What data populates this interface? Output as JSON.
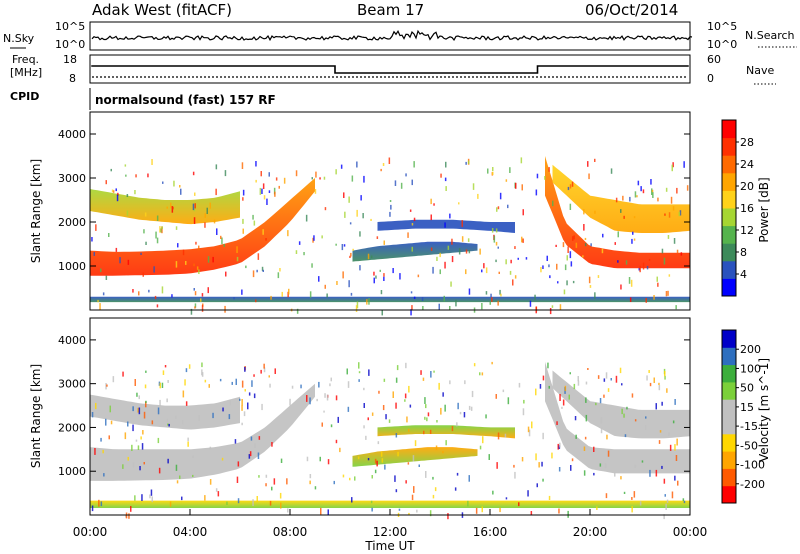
{
  "header": {
    "station": "Adak West (fitACF)",
    "beam": "Beam 17",
    "date": "06/Oct/2014"
  },
  "noise_panel": {
    "left_label": "N.Sky",
    "right_label": "N.Search",
    "ytick_top": "10^5",
    "ytick_bottom": "10^0",
    "rtick_top": "10^5",
    "rtick_bottom": "10^0"
  },
  "freq_panel": {
    "left_label_1": "Freq.",
    "left_label_2": "[MHz]",
    "right_label": "Nave",
    "ytick_top": "18",
    "ytick_bottom": "8",
    "rtick_top": "60",
    "rtick_bottom": "0"
  },
  "cpid_panel": {
    "label": "CPID",
    "text": "normalsound (fast) 157 RF"
  },
  "colors": {
    "power_scale": [
      "#0000ff",
      "#2a52be",
      "#3c8a5a",
      "#55b34d",
      "#a6d633",
      "#ffd21a",
      "#ffa500",
      "#ff6a00",
      "#ff3000",
      "#ff0000"
    ],
    "velocity_scale": [
      "#ff0000",
      "#ff5a00",
      "#ffa500",
      "#ffd700",
      "#c0c0c0",
      "#c0c0c0",
      "#7bd03a",
      "#3cae3c",
      "#2e6fbf",
      "#0000c8"
    ],
    "ground_scatter": "#c0c0c0"
  },
  "chart_data": [
    {
      "type": "heatmap",
      "name": "power",
      "ylabel": "Slant Range [km]",
      "colorbar_label": "Power [dB]",
      "colorbar_ticks": [
        "4",
        "8",
        "12",
        "16",
        "20",
        "24",
        "28"
      ],
      "colorbar_range": [
        0,
        32
      ],
      "yticks": [
        "1000",
        "2000",
        "3000",
        "4000"
      ],
      "ylim": [
        0,
        4500
      ],
      "xlim": [
        0,
        24
      ],
      "regions": [
        {
          "kind": "band",
          "t": [
            0,
            1,
            2,
            3,
            4,
            5,
            6,
            7,
            8,
            9
          ],
          "lo": [
            780,
            780,
            790,
            800,
            830,
            920,
            1060,
            1450,
            2000,
            2700
          ],
          "hi": [
            1350,
            1320,
            1330,
            1350,
            1380,
            1450,
            1600,
            2000,
            2500,
            3000
          ],
          "color_top": "#ff9a00",
          "color_bottom": "#ff2a00"
        },
        {
          "kind": "band",
          "t": [
            0,
            1,
            2,
            3,
            4,
            5,
            6
          ],
          "lo": [
            2250,
            2150,
            2050,
            2000,
            1950,
            2000,
            2100
          ],
          "hi": [
            2750,
            2650,
            2550,
            2500,
            2500,
            2550,
            2700
          ],
          "color_top": "#a6d633",
          "color_bottom": "#ffa500"
        },
        {
          "kind": "band",
          "t": [
            18.2,
            19,
            20,
            21,
            22,
            23,
            24
          ],
          "lo": [
            2600,
            1500,
            1050,
            950,
            950,
            950,
            950
          ],
          "hi": [
            3500,
            2000,
            1450,
            1350,
            1300,
            1300,
            1300
          ],
          "color_top": "#ff9a00",
          "color_bottom": "#ff2a00"
        },
        {
          "kind": "band",
          "t": [
            18.5,
            20,
            21,
            22,
            23,
            24
          ],
          "lo": [
            2900,
            2100,
            1800,
            1750,
            1750,
            1800
          ],
          "hi": [
            3300,
            2600,
            2500,
            2400,
            2400,
            2400
          ],
          "color_top": "#ffd21a",
          "color_bottom": "#ffa500"
        },
        {
          "kind": "band",
          "t": [
            10.5,
            11.5,
            12.5,
            13.5,
            14.5,
            15.5
          ],
          "lo": [
            1100,
            1150,
            1200,
            1250,
            1300,
            1350
          ],
          "hi": [
            1350,
            1450,
            1500,
            1550,
            1550,
            1500
          ],
          "color_top": "#2a52be",
          "color_bottom": "#3c8a5a"
        },
        {
          "kind": "band",
          "t": [
            11.5,
            13,
            14.5,
            16,
            17
          ],
          "lo": [
            1800,
            1850,
            1850,
            1800,
            1750
          ],
          "hi": [
            2000,
            2050,
            2050,
            2000,
            2000
          ],
          "color_top": "#2a52be",
          "color_bottom": "#2a52be"
        },
        {
          "kind": "band",
          "t": [
            0,
            6,
            12,
            18,
            24
          ],
          "lo": [
            180,
            180,
            180,
            180,
            180
          ],
          "hi": [
            300,
            300,
            300,
            300,
            300
          ],
          "color_top": "#2a52be",
          "color_bottom": "#3c8a5a"
        }
      ]
    },
    {
      "type": "heatmap",
      "name": "velocity",
      "ylabel": "Slant Range [km]",
      "colorbar_label": "Velocity [m s^-1]",
      "colorbar_ticks": [
        "-200",
        "-100",
        "-50",
        "-15",
        "15",
        "50",
        "100",
        "200"
      ],
      "yticks": [
        "1000",
        "2000",
        "3000",
        "4000"
      ],
      "ylim": [
        0,
        4500
      ],
      "xlim": [
        0,
        24
      ],
      "xlabel": "Time UT",
      "xticks": [
        "00:00",
        "04:00",
        "08:00",
        "12:00",
        "16:00",
        "20:00",
        "00:00"
      ],
      "regions": [
        {
          "kind": "band",
          "t": [
            0,
            1,
            2,
            3,
            4,
            5,
            6,
            7,
            8,
            9
          ],
          "lo": [
            780,
            780,
            790,
            800,
            830,
            920,
            1060,
            1450,
            2000,
            2700
          ],
          "hi": [
            1550,
            1500,
            1500,
            1500,
            1500,
            1550,
            1650,
            2000,
            2500,
            3000
          ],
          "color_top": "#c0c0c0",
          "color_bottom": "#c0c0c0"
        },
        {
          "kind": "band",
          "t": [
            0,
            1,
            2,
            3,
            4,
            5,
            6
          ],
          "lo": [
            2250,
            2150,
            2050,
            2000,
            1950,
            2000,
            2100
          ],
          "hi": [
            2750,
            2650,
            2550,
            2500,
            2500,
            2550,
            2700
          ],
          "color_top": "#c0c0c0",
          "color_bottom": "#c0c0c0"
        },
        {
          "kind": "band",
          "t": [
            18.2,
            19,
            20,
            21,
            22,
            23,
            24
          ],
          "lo": [
            2600,
            1500,
            1050,
            950,
            950,
            950,
            950
          ],
          "hi": [
            3500,
            2000,
            1550,
            1500,
            1500,
            1500,
            1500
          ],
          "color_top": "#c0c0c0",
          "color_bottom": "#c0c0c0"
        },
        {
          "kind": "band",
          "t": [
            18.5,
            20,
            21,
            22,
            23,
            24
          ],
          "lo": [
            2900,
            2100,
            1800,
            1750,
            1750,
            1800
          ],
          "hi": [
            3300,
            2600,
            2500,
            2400,
            2400,
            2400
          ],
          "color_top": "#c0c0c0",
          "color_bottom": "#c0c0c0"
        },
        {
          "kind": "band",
          "t": [
            10.5,
            11.5,
            12.5,
            13.5,
            14.5,
            15.5
          ],
          "lo": [
            1100,
            1150,
            1200,
            1250,
            1300,
            1350
          ],
          "hi": [
            1350,
            1450,
            1500,
            1550,
            1550,
            1500
          ],
          "color_top": "#ffa500",
          "color_bottom": "#7bd03a"
        },
        {
          "kind": "band",
          "t": [
            11.5,
            13,
            14.5,
            16,
            17
          ],
          "lo": [
            1800,
            1850,
            1850,
            1800,
            1750
          ],
          "hi": [
            2000,
            2050,
            2050,
            2000,
            2000
          ],
          "color_top": "#7bd03a",
          "color_bottom": "#ffa500"
        },
        {
          "kind": "band",
          "t": [
            0,
            6,
            12,
            18,
            24
          ],
          "lo": [
            160,
            160,
            160,
            160,
            160
          ],
          "hi": [
            330,
            330,
            330,
            330,
            330
          ],
          "color_top": "#ffd700",
          "color_bottom": "#7bd03a"
        }
      ]
    }
  ]
}
